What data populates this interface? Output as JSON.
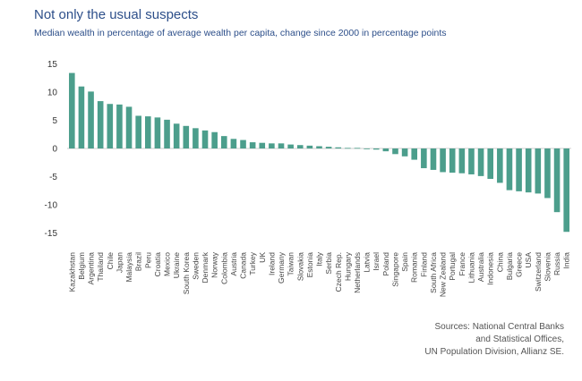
{
  "header": {
    "title": "Not only the usual suspects",
    "subtitle": "Median wealth in percentage of average wealth per capita, change since 2000 in percentage points"
  },
  "source": {
    "lines": [
      "Sources: National Central Banks",
      "and Statistical Offices,",
      "UN Population Division, Allianz SE."
    ]
  },
  "colors": {
    "bar": "#4c9e8c",
    "zero_line": "#bbbbbb",
    "title": "#2d4f8a"
  },
  "chart_data": {
    "type": "bar",
    "categories": [
      "Kazakhstan",
      "Belgium",
      "Argentina",
      "Thailand",
      "Chile",
      "Japan",
      "Malaysia",
      "Brazil",
      "Peru",
      "Croatia",
      "Mexico",
      "Ukraine",
      "South Korea",
      "Sweden",
      "Denmark",
      "Norway",
      "Colombia",
      "Austria",
      "Canada",
      "Turkey",
      "UK",
      "Ireland",
      "Germany",
      "Taiwan",
      "Slovakia",
      "Estonia",
      "Italy",
      "Serbia",
      "Czech Rep.",
      "Hungary",
      "Netherlands",
      "Latvia",
      "Israel",
      "Poland",
      "Singapore",
      "Spain",
      "Romania",
      "Finland",
      "South Africa",
      "New Zealand",
      "Portugal",
      "France",
      "Lithuania",
      "Australia",
      "Indonesia",
      "China",
      "Bulgaria",
      "Greece",
      "USA",
      "Switzerland",
      "Slovenia",
      "Russia",
      "India"
    ],
    "values": [
      13.4,
      11.0,
      10.1,
      8.4,
      7.9,
      7.8,
      7.4,
      5.8,
      5.7,
      5.5,
      5.1,
      4.4,
      4.0,
      3.6,
      3.2,
      2.9,
      2.2,
      1.7,
      1.5,
      1.1,
      1.0,
      0.9,
      0.9,
      0.7,
      0.6,
      0.5,
      0.4,
      0.3,
      0.2,
      0.1,
      0.1,
      -0.1,
      -0.2,
      -0.5,
      -1.0,
      -1.4,
      -2.0,
      -3.5,
      -3.8,
      -4.2,
      -4.3,
      -4.4,
      -4.6,
      -4.9,
      -5.4,
      -6.1,
      -7.4,
      -7.6,
      -7.8,
      -8.0,
      -8.8,
      -11.3,
      -14.8
    ],
    "yticks": [
      15,
      10,
      5,
      0,
      -5,
      -10,
      -15
    ],
    "ylim": [
      -16,
      15.5
    ],
    "title": "Not only the usual suspects",
    "xlabel": "",
    "ylabel": "",
    "grid": false,
    "legend": false
  }
}
